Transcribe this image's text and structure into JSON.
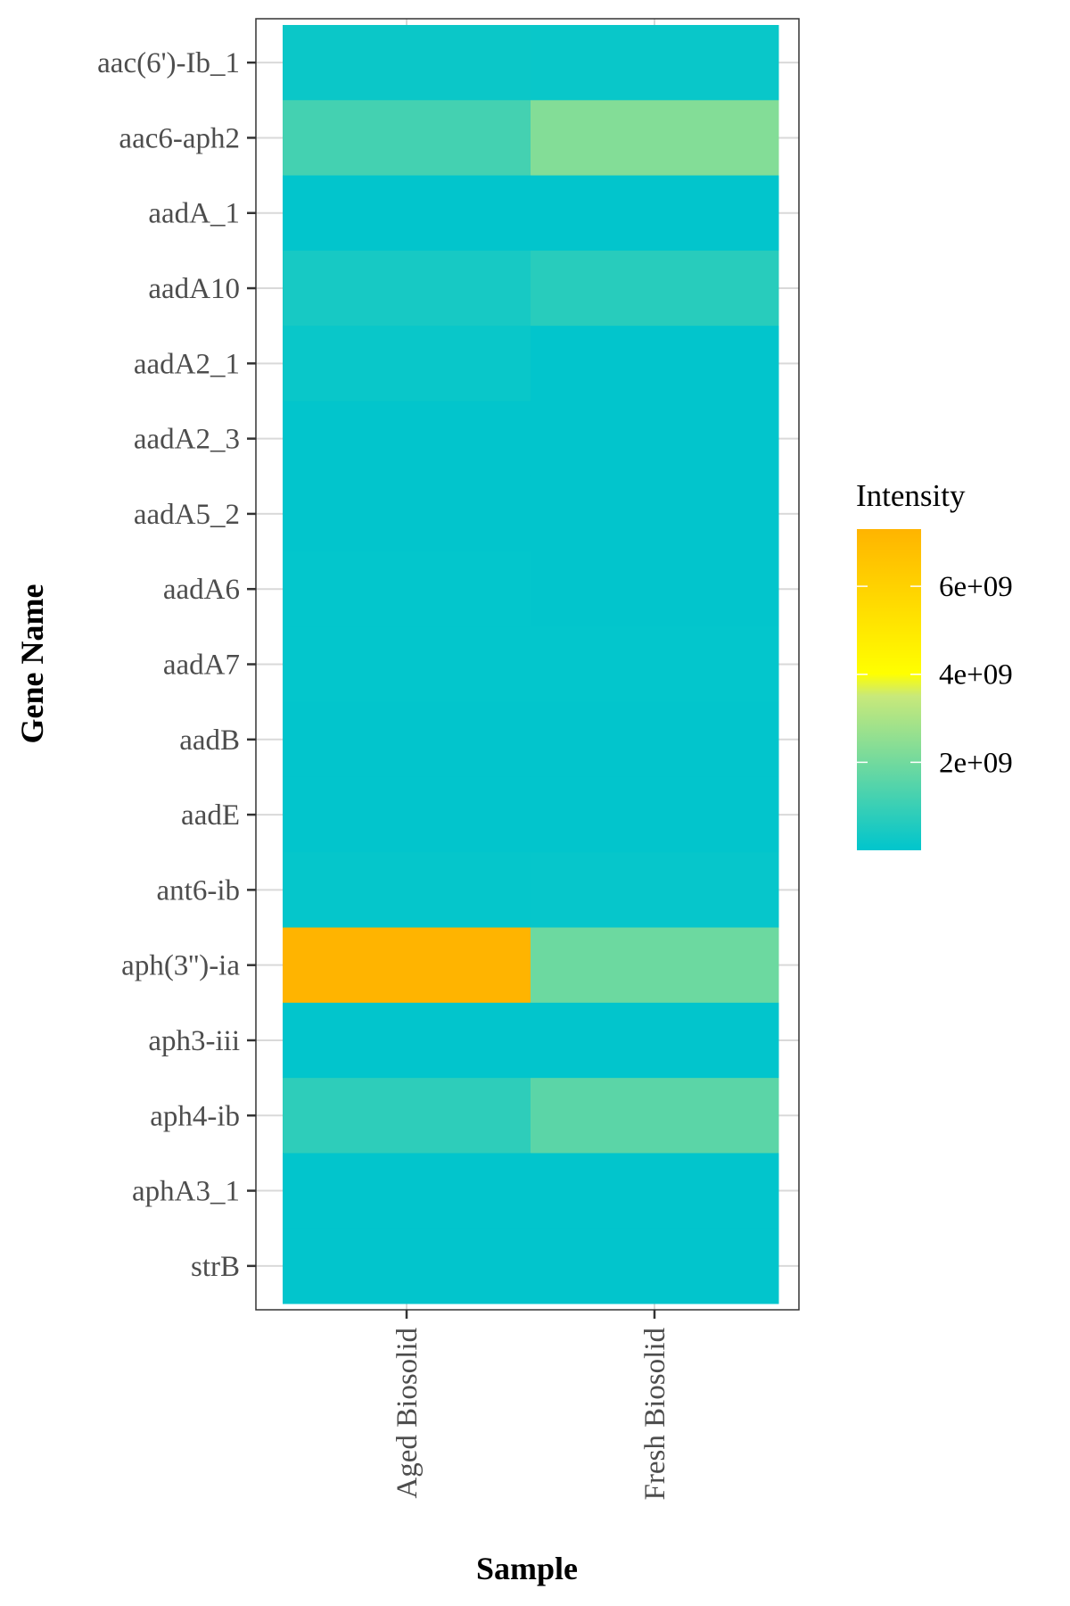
{
  "chart_data": {
    "type": "heatmap",
    "xlabel": "Sample",
    "ylabel": "Gene Name",
    "x": [
      "Aged Biosolid",
      "Fresh Biosolid"
    ],
    "y": [
      "aac(6')-Ib_1",
      "aac6-aph2",
      "aadA_1",
      "aadA10",
      "aadA2_1",
      "aadA2_3",
      "aadA5_2",
      "aadA6",
      "aadA7",
      "aadB",
      "aadE",
      "ant6-ib",
      "aph(3'')-ia",
      "aph3-iii",
      "aph4-ib",
      "aphA3_1",
      "strB"
    ],
    "values": [
      [
        200000000.0,
        150000000.0
      ],
      [
        1200000000.0,
        2300000000.0
      ],
      [
        30000000.0,
        30000000.0
      ],
      [
        400000000.0,
        700000000.0
      ],
      [
        150000000.0,
        30000000.0
      ],
      [
        30000000.0,
        30000000.0
      ],
      [
        30000000.0,
        30000000.0
      ],
      [
        50000000.0,
        30000000.0
      ],
      [
        50000000.0,
        50000000.0
      ],
      [
        30000000.0,
        30000000.0
      ],
      [
        30000000.0,
        30000000.0
      ],
      [
        80000000.0,
        100000000.0
      ],
      [
        7300000000.0,
        1900000000.0
      ],
      [
        30000000.0,
        30000000.0
      ],
      [
        800000000.0,
        1600000000.0
      ],
      [
        30000000.0,
        30000000.0
      ],
      [
        30000000.0,
        30000000.0
      ]
    ],
    "legend": {
      "title": "Intensity",
      "ticks": [
        {
          "value": 2000000000.0,
          "label": "2e+09"
        },
        {
          "value": 4000000000.0,
          "label": "4e+09"
        },
        {
          "value": 6000000000.0,
          "label": "6e+09"
        }
      ],
      "range": [
        0,
        7300000000.0
      ],
      "placement": "right"
    },
    "colorscale": [
      "#00c5cd",
      "#ffff00",
      "#ffb400"
    ],
    "grid": true
  }
}
